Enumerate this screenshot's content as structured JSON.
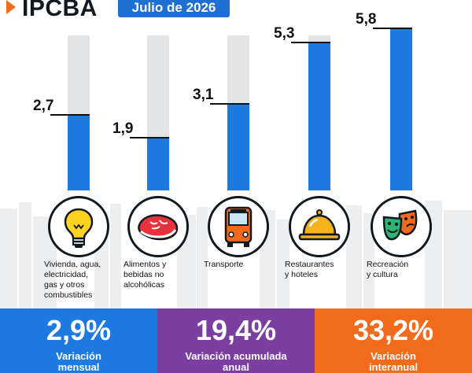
{
  "header": {
    "brand": "IPCBA",
    "date": "Julio de 2026"
  },
  "chart_data": {
    "type": "bar",
    "categories": [
      "Vivienda, agua, electricidad, gas y otros combustibles",
      "Alimentos y bebidas no alcohólicas",
      "Transporte",
      "Restaurantes y hoteles",
      "Recreación y cultura"
    ],
    "values": [
      2.7,
      1.9,
      3.1,
      5.3,
      5.8
    ],
    "value_labels": [
      "2,7",
      "1,9",
      "3,1",
      "5,3",
      "5,8"
    ],
    "ylim": [
      0,
      6.5
    ],
    "grid": false,
    "colors": {
      "bar": "#1d7ae0",
      "track": "#e3e4e6"
    }
  },
  "categories": [
    {
      "label_lines": [
        "Vivienda, agua,",
        "electricidad,",
        "gas y otros",
        "combustibles"
      ],
      "icon": "lightbulb-icon"
    },
    {
      "label_lines": [
        "Alimentos y",
        "bebidas no",
        "alcohólicas"
      ],
      "icon": "meat-icon"
    },
    {
      "label_lines": [
        "Transporte"
      ],
      "icon": "bus-icon"
    },
    {
      "label_lines": [
        "Restaurantes",
        "y hoteles"
      ],
      "icon": "cloche-icon"
    },
    {
      "label_lines": [
        "Recreación",
        "y cultura"
      ],
      "icon": "theater-masks-icon"
    }
  ],
  "stats": [
    {
      "value": "2,9%",
      "label_lines": [
        "Variación",
        "mensual"
      ],
      "color": "#1d7ae0"
    },
    {
      "value": "19,4%",
      "label_lines": [
        "Variación acumulada",
        "anual"
      ],
      "color": "#7a3fa0"
    },
    {
      "value": "33,2%",
      "label_lines": [
        "Variación",
        "interanual"
      ],
      "color": "#f26b1d"
    }
  ]
}
